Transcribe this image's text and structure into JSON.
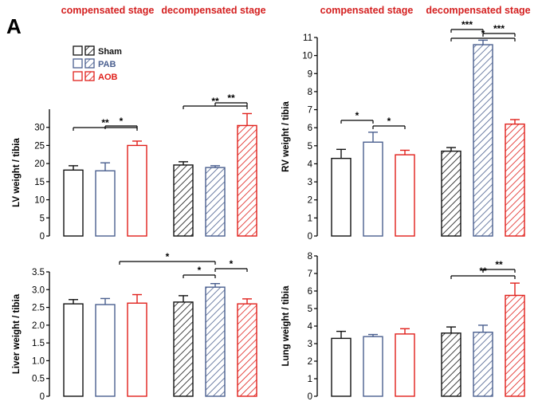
{
  "panel_label": "A",
  "stage_labels": {
    "compensated": "compensated stage",
    "decompensated": "decompensated stage"
  },
  "legend": [
    {
      "name": "Sham",
      "color": "#111111"
    },
    {
      "name": "PAB",
      "color": "#4a5f8f"
    },
    {
      "name": "AOB",
      "color": "#e0201b"
    }
  ],
  "colors": {
    "sham": "#111111",
    "pab": "#4a5f8f",
    "aob": "#e0201b",
    "stage_label": "#d42020",
    "axis": "#000000"
  },
  "chart_data": [
    {
      "type": "bar",
      "id": "lv",
      "ylabel": "LV weight / tibia",
      "ylim": [
        0,
        35
      ],
      "yticks": [
        0,
        5,
        10,
        15,
        20,
        25,
        30
      ],
      "ytick_labels": [
        "0",
        "5",
        "10",
        "15",
        "20",
        "25",
        "30"
      ],
      "categories": [
        "compensated stage",
        "decompensated stage"
      ],
      "series": [
        {
          "name": "Sham",
          "values": [
            18.2,
            19.6
          ],
          "errors": [
            1.2,
            0.9
          ]
        },
        {
          "name": "PAB",
          "values": [
            18.0,
            18.9
          ],
          "errors": [
            2.2,
            0.5
          ]
        },
        {
          "name": "AOB",
          "values": [
            25.0,
            30.5
          ],
          "errors": [
            1.2,
            3.3
          ]
        }
      ],
      "significance": [
        {
          "stage": 0,
          "from": 0,
          "to": 2,
          "label": "**",
          "level": 0
        },
        {
          "stage": 0,
          "from": 1,
          "to": 2,
          "label": "*",
          "level": 1
        },
        {
          "stage": 1,
          "from": 0,
          "to": 2,
          "label": "**",
          "level": 0
        },
        {
          "stage": 1,
          "from": 1,
          "to": 2,
          "label": "**",
          "level": 1
        }
      ]
    },
    {
      "type": "bar",
      "id": "rv",
      "ylabel": "RV weight / tibia",
      "ylim": [
        0,
        11
      ],
      "yticks": [
        0,
        1,
        2,
        3,
        4,
        5,
        6,
        7,
        8,
        9,
        10,
        11
      ],
      "ytick_labels": [
        "0",
        "1",
        "2",
        "3",
        "4",
        "5",
        "6",
        "7",
        "8",
        "9",
        "10",
        "11"
      ],
      "categories": [
        "compensated stage",
        "decompensated stage"
      ],
      "series": [
        {
          "name": "Sham",
          "values": [
            4.3,
            4.7
          ],
          "errors": [
            0.5,
            0.2
          ]
        },
        {
          "name": "PAB",
          "values": [
            5.2,
            10.6
          ],
          "errors": [
            0.55,
            0.25
          ]
        },
        {
          "name": "AOB",
          "values": [
            4.5,
            6.2
          ],
          "errors": [
            0.25,
            0.25
          ]
        }
      ],
      "significance": [
        {
          "stage": 0,
          "from": 0,
          "to": 1,
          "label": "*",
          "level": 0
        },
        {
          "stage": 0,
          "from": 1,
          "to": 2,
          "label": "*",
          "level": 1
        },
        {
          "stage": 1,
          "from": 0,
          "to": 1,
          "label": "***",
          "level": 0
        },
        {
          "stage": 1,
          "from": 1,
          "to": 2,
          "label": "***",
          "level": 1
        },
        {
          "stage": 1,
          "from": 0,
          "to": 2,
          "label": "*",
          "level": 2
        }
      ]
    },
    {
      "type": "bar",
      "id": "liver",
      "ylabel": "Liver weight / tibia",
      "ylim": [
        0,
        3.5
      ],
      "yticks": [
        0,
        0.5,
        1.0,
        1.5,
        2.0,
        2.5,
        3.0,
        3.5
      ],
      "ytick_labels": [
        "0",
        "0.5",
        "1.0",
        "1.5",
        "2.0",
        "2.5",
        "3.0",
        "3.5"
      ],
      "categories": [
        "compensated stage",
        "decompensated stage"
      ],
      "series": [
        {
          "name": "Sham",
          "values": [
            2.6,
            2.65
          ],
          "errors": [
            0.12,
            0.18
          ]
        },
        {
          "name": "PAB",
          "values": [
            2.58,
            3.07
          ],
          "errors": [
            0.17,
            0.1
          ]
        },
        {
          "name": "AOB",
          "values": [
            2.62,
            2.6
          ],
          "errors": [
            0.24,
            0.14
          ]
        }
      ],
      "significance": [
        {
          "stage": 1,
          "from": 0,
          "to": 1,
          "label": "*",
          "level": 0
        },
        {
          "stage": 1,
          "from": 1,
          "to": 2,
          "label": "*",
          "level": 1
        },
        {
          "stage": 1,
          "from": -2,
          "to": 1,
          "label": "*",
          "level": 2
        }
      ]
    },
    {
      "type": "bar",
      "id": "lung",
      "ylabel": "Lung weight / tibia",
      "ylim": [
        0,
        8
      ],
      "yticks": [
        0,
        1,
        2,
        3,
        4,
        5,
        6,
        7,
        8
      ],
      "ytick_labels": [
        "0",
        "1",
        "2",
        "3",
        "4",
        "5",
        "6",
        "7",
        "8"
      ],
      "categories": [
        "compensated stage",
        "decompensated stage"
      ],
      "series": [
        {
          "name": "Sham",
          "values": [
            3.3,
            3.6
          ],
          "errors": [
            0.4,
            0.35
          ]
        },
        {
          "name": "PAB",
          "values": [
            3.4,
            3.65
          ],
          "errors": [
            0.12,
            0.4
          ]
        },
        {
          "name": "AOB",
          "values": [
            3.55,
            5.75
          ],
          "errors": [
            0.3,
            0.7
          ]
        }
      ],
      "significance": [
        {
          "stage": 1,
          "from": 0,
          "to": 2,
          "label": "**",
          "level": 0
        },
        {
          "stage": 1,
          "from": 1,
          "to": 2,
          "label": "**",
          "level": 1
        }
      ]
    }
  ]
}
